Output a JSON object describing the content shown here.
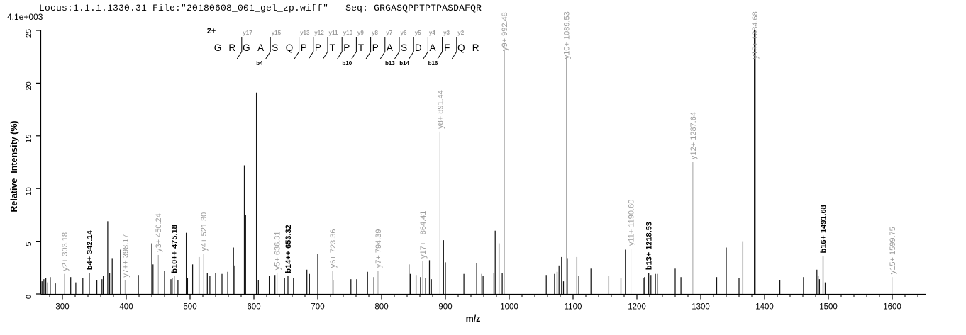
{
  "header": {
    "max_intensity_label": "4.1e+003",
    "title": "Locus:1.1.1.1330.31 File:\"20180608_001_gel_zp.wiff\"   Seq: GRGASQPPTPTPASDAFQR"
  },
  "sequence": {
    "charge_label": "2+",
    "residues": [
      "G",
      "R",
      "G",
      "A",
      "S",
      "Q",
      "P",
      "P",
      "T",
      "P",
      "T",
      "P",
      "A",
      "S",
      "D",
      "A",
      "F",
      "Q",
      "R"
    ],
    "cleavages": [
      {
        "after": 2,
        "y": "y17"
      },
      {
        "after": 4,
        "y": "y15",
        "b": "b4"
      },
      {
        "after": 6,
        "y": "y13"
      },
      {
        "after": 7,
        "y": "y12"
      },
      {
        "after": 8,
        "y": "y11"
      },
      {
        "after": 9,
        "y": "y10"
      },
      {
        "after": 10,
        "y": "y9",
        "b": "b10"
      },
      {
        "after": 11,
        "y": "y8"
      },
      {
        "after": 12,
        "y": "y7"
      },
      {
        "after": 13,
        "y": "y6",
        "b": "b13"
      },
      {
        "after": 14,
        "y": "y5",
        "b": "b14"
      },
      {
        "after": 15,
        "y": "y4"
      },
      {
        "after": 16,
        "y": "y3",
        "b": "b16"
      },
      {
        "after": 17,
        "y": "y2"
      }
    ]
  },
  "chart_data": {
    "type": "bar",
    "subtype": "ms2-fragment-ion-spectrum",
    "title": "",
    "xlabel": "m/z",
    "ylabel": "Relative  Intensity (%)",
    "xlim": [
      267,
      1652
    ],
    "ylim": [
      0,
      25
    ],
    "x_major_ticks": [
      300,
      400,
      500,
      600,
      700,
      800,
      900,
      1000,
      1100,
      1200,
      1300,
      1400,
      1500,
      1600
    ],
    "x_minor_tick_step": 20,
    "y_ticks": [
      0,
      5,
      10,
      15,
      20,
      25
    ],
    "grid": false,
    "legend": "none",
    "annotated_peaks": [
      {
        "ion": "y2+",
        "mz": 303.18,
        "intensity": 1.9,
        "label": "y2+ 303.18",
        "line": "gray"
      },
      {
        "ion": "b4+",
        "mz": 342.14,
        "intensity": 2.0,
        "label": "b4+ 342.14",
        "line": "black"
      },
      {
        "ion": "y7++",
        "mz": 398.17,
        "intensity": 1.3,
        "label": "y7++ 398.17",
        "line": "gray"
      },
      {
        "ion": "y3+",
        "mz": 450.24,
        "intensity": 3.7,
        "label": "y3+ 450.24",
        "line": "gray"
      },
      {
        "ion": "b10++",
        "mz": 475.18,
        "intensity": 1.7,
        "label": "b10++ 475.18",
        "line": "black"
      },
      {
        "ion": "y4+",
        "mz": 521.3,
        "intensity": 3.8,
        "label": "y4+ 521.30",
        "line": "gray"
      },
      {
        "ion": "y5+",
        "mz": 636.31,
        "intensity": 2.0,
        "label": "y5+ 636.31",
        "line": "gray"
      },
      {
        "ion": "b14++",
        "mz": 653.32,
        "intensity": 1.7,
        "label": "b14++ 653.32",
        "line": "black"
      },
      {
        "ion": "y6+",
        "mz": 723.36,
        "intensity": 2.2,
        "label": "y6+ 723.36",
        "line": "gray"
      },
      {
        "ion": "y7+",
        "mz": 794.39,
        "intensity": 2.2,
        "label": "y7+ 794.39",
        "line": "gray"
      },
      {
        "ion": "y17++",
        "mz": 864.41,
        "intensity": 3.1,
        "label": "y17++ 864.41",
        "line": "gray"
      },
      {
        "ion": "y8+",
        "mz": 891.44,
        "intensity": 15.4,
        "label": "y8+ 891.44",
        "line": "gray"
      },
      {
        "ion": "y9+",
        "mz": 992.48,
        "intensity": 23.2,
        "label": "y9+ 992.48",
        "line": "gray"
      },
      {
        "ion": "y10+",
        "mz": 1089.53,
        "intensity": 22.5,
        "label": "y10+ 1089.53",
        "line": "gray"
      },
      {
        "ion": "y11+",
        "mz": 1190.6,
        "intensity": 4.3,
        "label": "y11+ 1190.60",
        "line": "gray"
      },
      {
        "ion": "b13+",
        "mz": 1218.53,
        "intensity": 2.0,
        "label": "b13+ 1218.53",
        "line": "black"
      },
      {
        "ion": "y12+",
        "mz": 1287.64,
        "intensity": 12.5,
        "label": "y12+ 1287.64",
        "line": "gray"
      },
      {
        "ion": "y13+",
        "mz": 1384.68,
        "intensity": 25.0,
        "label": "y13+ 1384.68",
        "line": "black-thick",
        "label_color": "gray"
      },
      {
        "ion": "b16+",
        "mz": 1491.68,
        "intensity": 3.6,
        "label": "b16+ 1491.68",
        "line": "black"
      },
      {
        "ion": "y15+",
        "mz": 1599.75,
        "intensity": 1.6,
        "label": "y15+ 1599.75",
        "line": "gray"
      }
    ],
    "unannotated_peaks": [
      [
        268,
        1.2
      ],
      [
        271,
        1.4
      ],
      [
        274,
        1.5
      ],
      [
        277,
        1.1
      ],
      [
        281,
        1.6
      ],
      [
        289,
        1.0
      ],
      [
        313,
        1.6
      ],
      [
        321,
        1.1
      ],
      [
        332,
        1.5
      ],
      [
        354,
        1.3
      ],
      [
        362,
        1.4
      ],
      [
        364,
        1.7
      ],
      [
        371,
        6.9
      ],
      [
        374,
        2.0
      ],
      [
        378,
        3.4
      ],
      [
        391,
        4.2
      ],
      [
        419,
        1.8
      ],
      [
        440,
        4.8
      ],
      [
        442,
        2.8
      ],
      [
        460,
        2.2
      ],
      [
        470,
        1.4
      ],
      [
        472,
        1.5
      ],
      [
        481,
        1.3
      ],
      [
        494,
        5.8
      ],
      [
        496,
        1.5
      ],
      [
        504,
        2.8
      ],
      [
        514,
        3.5
      ],
      [
        527,
        2.0
      ],
      [
        531,
        1.7
      ],
      [
        540,
        2.0
      ],
      [
        550,
        1.9
      ],
      [
        559,
        2.1
      ],
      [
        568,
        4.4
      ],
      [
        570,
        2.7
      ],
      [
        585,
        12.2
      ],
      [
        587,
        7.5
      ],
      [
        604,
        19.1
      ],
      [
        607,
        1.3
      ],
      [
        624,
        1.7
      ],
      [
        633,
        1.8
      ],
      [
        648,
        1.5
      ],
      [
        662,
        1.5
      ],
      [
        683,
        2.3
      ],
      [
        687,
        1.9
      ],
      [
        700,
        3.8
      ],
      [
        724,
        1.3
      ],
      [
        752,
        1.4
      ],
      [
        761,
        1.4
      ],
      [
        778,
        2.1
      ],
      [
        788,
        1.6
      ],
      [
        843,
        2.8
      ],
      [
        845,
        1.9
      ],
      [
        854,
        1.8
      ],
      [
        861,
        1.6
      ],
      [
        869,
        1.5
      ],
      [
        875,
        3.2
      ],
      [
        878,
        1.4
      ],
      [
        897,
        5.1
      ],
      [
        900,
        3.0
      ],
      [
        929,
        1.9
      ],
      [
        949,
        2.9
      ],
      [
        957,
        1.9
      ],
      [
        959,
        1.7
      ],
      [
        976,
        2.0
      ],
      [
        978,
        6.0
      ],
      [
        984,
        4.8
      ],
      [
        989,
        2.0
      ],
      [
        1058,
        1.8
      ],
      [
        1071,
        1.9
      ],
      [
        1075,
        2.1
      ],
      [
        1078,
        2.7
      ],
      [
        1082,
        3.5
      ],
      [
        1085,
        1.2
      ],
      [
        1091,
        3.4
      ],
      [
        1106,
        3.5
      ],
      [
        1109,
        1.7
      ],
      [
        1128,
        2.4
      ],
      [
        1156,
        1.7
      ],
      [
        1175,
        1.5
      ],
      [
        1182,
        4.2
      ],
      [
        1210,
        1.5
      ],
      [
        1212,
        1.6
      ],
      [
        1222,
        1.8
      ],
      [
        1229,
        1.9
      ],
      [
        1232,
        1.9
      ],
      [
        1260,
        2.4
      ],
      [
        1269,
        1.6
      ],
      [
        1325,
        1.6
      ],
      [
        1340,
        4.4
      ],
      [
        1360,
        1.5
      ],
      [
        1366,
        5.0
      ],
      [
        1424,
        1.3
      ],
      [
        1461,
        1.6
      ],
      [
        1482,
        2.3
      ],
      [
        1484,
        1.7
      ],
      [
        1486,
        1.4
      ],
      [
        1495,
        1.1
      ]
    ]
  },
  "colors": {
    "background": "#ffffff",
    "axis": "#000000",
    "black_peak": "#151515",
    "gray_peak": "#a9a9a9",
    "y_ion_label": "#9c9c9c",
    "b_ion_label": "#000000"
  }
}
